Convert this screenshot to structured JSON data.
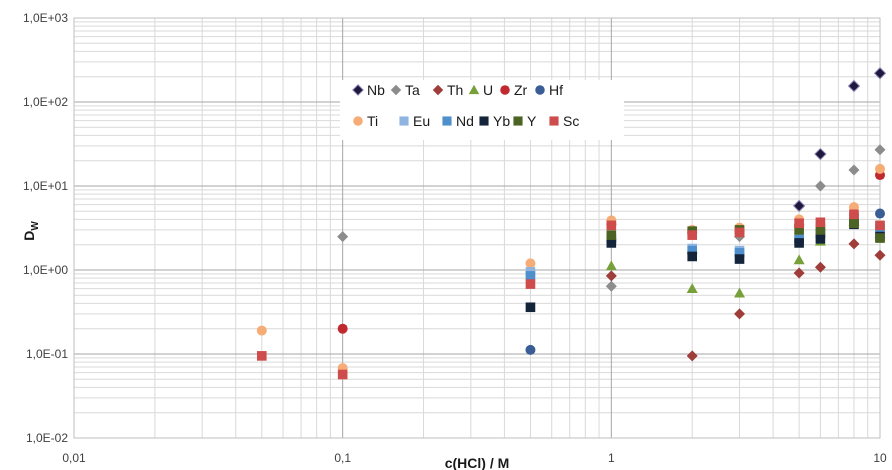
{
  "chart_data": {
    "type": "scatter",
    "title": "",
    "xlabel": "c(HCl) / M",
    "ylabel": "D",
    "ylabel_subscript": "W",
    "x_scale": "log",
    "y_scale": "log",
    "xlim": [
      0.01,
      10
    ],
    "ylim": [
      0.01,
      1000
    ],
    "x_ticks": [
      0.01,
      0.1,
      1,
      10
    ],
    "x_tick_labels": [
      "0,01",
      "0,1",
      "1",
      "10"
    ],
    "y_ticks": [
      0.01,
      0.1,
      1,
      10,
      100,
      1000
    ],
    "y_tick_labels": [
      "1,0E-02",
      "1,0E-01",
      "1,0E+00",
      "1,0E+01",
      "1,0E+02",
      "1,0E+03"
    ],
    "grid": true,
    "legend_position": "top-center, inside plot",
    "series": [
      {
        "name": "Nb",
        "marker": "diamond",
        "color": "#1f1a3d",
        "stroke": "#8e86b8",
        "points": [
          [
            5,
            5.8
          ],
          [
            6,
            24
          ],
          [
            8,
            155
          ],
          [
            10,
            220
          ]
        ]
      },
      {
        "name": "Ta",
        "marker": "diamond",
        "color": "#8c8c8c",
        "stroke": "",
        "points": [
          [
            0.1,
            2.5
          ],
          [
            1,
            0.64
          ],
          [
            3,
            2.5
          ],
          [
            5,
            3.5
          ],
          [
            6,
            10
          ],
          [
            8,
            15.5
          ],
          [
            10,
            27
          ]
        ]
      },
      {
        "name": "Th",
        "marker": "diamond",
        "color": "#9e3d3a",
        "stroke": "",
        "points": [
          [
            1,
            0.85
          ],
          [
            2,
            0.095
          ],
          [
            3,
            0.3
          ],
          [
            5,
            0.92
          ],
          [
            6,
            1.08
          ],
          [
            8,
            2.05
          ],
          [
            10,
            1.5
          ]
        ]
      },
      {
        "name": "U",
        "marker": "triangle",
        "color": "#77a03a",
        "stroke": "",
        "points": [
          [
            1,
            1.12
          ],
          [
            2,
            0.6
          ],
          [
            3,
            0.53
          ],
          [
            5,
            1.32
          ],
          [
            6,
            2.2
          ],
          [
            8,
            3.8
          ],
          [
            10,
            2.7
          ]
        ]
      },
      {
        "name": "Zr",
        "marker": "circle",
        "color": "#c0292d",
        "stroke": "",
        "points": [
          [
            0.1,
            0.2
          ],
          [
            1,
            3.5
          ],
          [
            2,
            2.8
          ],
          [
            3,
            2.9
          ],
          [
            5,
            3.3
          ],
          [
            6,
            3.0
          ],
          [
            8,
            4.6
          ],
          [
            10,
            13.5
          ]
        ]
      },
      {
        "name": "Hf",
        "marker": "circle",
        "color": "#3a5d96",
        "stroke": "",
        "points": [
          [
            0.5,
            0.112
          ],
          [
            1,
            2.2
          ],
          [
            2,
            1.6
          ],
          [
            3,
            1.5
          ],
          [
            5,
            2.2
          ],
          [
            6,
            2.5
          ],
          [
            8,
            3.9
          ],
          [
            10,
            4.7
          ]
        ]
      },
      {
        "name": "Ti",
        "marker": "circle",
        "color": "#f5ac76",
        "stroke": "",
        "points": [
          [
            0.05,
            0.19
          ],
          [
            0.1,
            0.068
          ],
          [
            0.5,
            1.2
          ],
          [
            1,
            3.9
          ],
          [
            2,
            3.0
          ],
          [
            3,
            3.2
          ],
          [
            5,
            4.0
          ],
          [
            6,
            3.5
          ],
          [
            8,
            5.6
          ],
          [
            10,
            16
          ]
        ]
      },
      {
        "name": "Eu",
        "marker": "square",
        "color": "#8fb4e0",
        "stroke": "",
        "points": [
          [
            0.5,
            0.95
          ],
          [
            1,
            2.4
          ],
          [
            2,
            1.8
          ],
          [
            3,
            1.7
          ],
          [
            5,
            2.4
          ],
          [
            6,
            2.8
          ],
          [
            8,
            4.1
          ],
          [
            10,
            3.3
          ]
        ]
      },
      {
        "name": "Nd",
        "marker": "square",
        "color": "#4f8fcc",
        "stroke": "",
        "points": [
          [
            0.5,
            0.85
          ],
          [
            1,
            2.3
          ],
          [
            2,
            1.7
          ],
          [
            3,
            1.6
          ],
          [
            5,
            2.3
          ],
          [
            6,
            2.7
          ],
          [
            8,
            4.0
          ],
          [
            10,
            3.1
          ]
        ]
      },
      {
        "name": "Yb",
        "marker": "square",
        "color": "#14243a",
        "stroke": "",
        "points": [
          [
            0.5,
            0.36
          ],
          [
            1,
            2.1
          ],
          [
            2,
            1.45
          ],
          [
            3,
            1.35
          ],
          [
            5,
            2.1
          ],
          [
            6,
            2.35
          ],
          [
            8,
            3.5
          ],
          [
            10,
            2.5
          ]
        ]
      },
      {
        "name": "Y",
        "marker": "square",
        "color": "#4b6424",
        "stroke": "",
        "points": [
          [
            1,
            2.6
          ],
          [
            2,
            2.9
          ],
          [
            3,
            3.0
          ],
          [
            5,
            3.0
          ],
          [
            6,
            3.0
          ],
          [
            8,
            3.6
          ],
          [
            10,
            2.4
          ]
        ]
      },
      {
        "name": "Sc",
        "marker": "square",
        "color": "#cf4c4c",
        "stroke": "",
        "points": [
          [
            0.05,
            0.095
          ],
          [
            0.1,
            0.057
          ],
          [
            0.5,
            0.68
          ],
          [
            1,
            3.4
          ],
          [
            2,
            2.6
          ],
          [
            3,
            2.8
          ],
          [
            5,
            3.6
          ],
          [
            6,
            3.7
          ],
          [
            8,
            4.6
          ],
          [
            10,
            3.4
          ]
        ]
      }
    ]
  }
}
